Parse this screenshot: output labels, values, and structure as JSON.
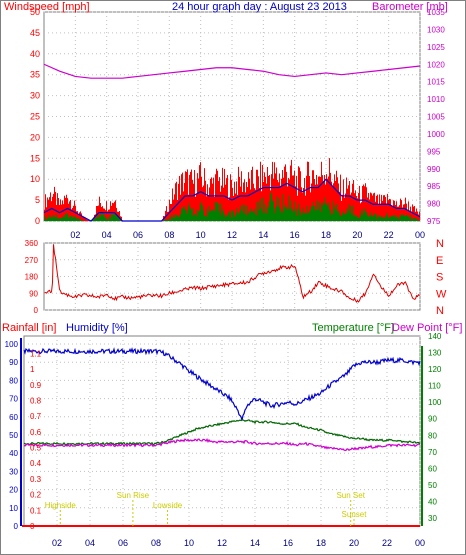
{
  "chart_data": [
    {
      "type": "line",
      "title": "24 hour graph day : August 23 2013",
      "xlabel": "",
      "ylabel": "Windspeed [mph]",
      "ylabel_right": "Barometer [mb]",
      "x_ticks": [
        "02",
        "04",
        "06",
        "08",
        "10",
        "12",
        "14",
        "16",
        "18",
        "20",
        "22",
        "00"
      ],
      "y_ticks": [
        0,
        5,
        10,
        15,
        20,
        25,
        30,
        35,
        40,
        45,
        50
      ],
      "y_ticks_right": [
        975,
        980,
        985,
        990,
        995,
        1000,
        1005,
        1010,
        1015,
        1020,
        1025,
        1030,
        1035
      ],
      "ylim": [
        0,
        50
      ],
      "ylim_right": [
        975,
        1035
      ],
      "grid": true,
      "colors": {
        "gust": "#ff0000",
        "wind": "#008000",
        "average": "#0000cc",
        "barometer": "#cc00cc"
      },
      "series": [
        {
          "name": "Windspeed",
          "x": [
            0,
            0.5,
            1,
            1.5,
            2,
            2.5,
            3,
            3.5,
            4,
            4.5,
            5,
            5.5,
            6,
            6.5,
            7,
            7.5,
            8,
            8.5,
            9,
            9.5,
            10,
            10.5,
            11,
            11.5,
            12,
            12.5,
            13,
            13.5,
            14,
            14.5,
            15,
            15.5,
            16,
            16.5,
            17,
            17.5,
            18,
            18.5,
            19,
            19.5,
            20,
            20.5,
            21,
            21.5,
            22,
            22.5,
            23,
            23.5,
            24
          ],
          "values": [
            1,
            2,
            1,
            2,
            1,
            0,
            0,
            2,
            1,
            2,
            0,
            0,
            0,
            0,
            0,
            0,
            1,
            2,
            4,
            3,
            4,
            3,
            4,
            3,
            2,
            4,
            3,
            4,
            5,
            6,
            5,
            6,
            4,
            3,
            5,
            4,
            6,
            4,
            2,
            4,
            2,
            3,
            2,
            1,
            2,
            1,
            2,
            1,
            0
          ]
        },
        {
          "name": "Gust",
          "x": [
            0,
            0.5,
            1,
            1.5,
            2,
            2.5,
            3,
            3.5,
            4,
            4.5,
            5,
            5.5,
            6,
            6.5,
            7,
            7.5,
            8,
            8.5,
            9,
            9.5,
            10,
            10.5,
            11,
            11.5,
            12,
            12.5,
            13,
            13.5,
            14,
            14.5,
            15,
            15.5,
            16,
            16.5,
            17,
            17.5,
            18,
            18.5,
            19,
            19.5,
            20,
            20.5,
            21,
            21.5,
            22,
            22.5,
            23,
            23.5,
            24
          ],
          "values": [
            6,
            9,
            5,
            8,
            4,
            1,
            0,
            6,
            5,
            7,
            0,
            0,
            0,
            0,
            0,
            0,
            6,
            11,
            13,
            12,
            14,
            11,
            13,
            12,
            11,
            13,
            12,
            13,
            14,
            15,
            14,
            16,
            13,
            12,
            15,
            14,
            17,
            13,
            10,
            11,
            8,
            9,
            7,
            6,
            7,
            5,
            6,
            4,
            2
          ]
        },
        {
          "name": "Average",
          "x": [
            0,
            0.5,
            1,
            1.5,
            2,
            2.5,
            3,
            3.5,
            4,
            4.5,
            5,
            5.5,
            6,
            6.5,
            7,
            7.5,
            8,
            8.5,
            9,
            9.5,
            10,
            10.5,
            11,
            11.5,
            12,
            12.5,
            13,
            13.5,
            14,
            14.5,
            15,
            15.5,
            16,
            16.5,
            17,
            17.5,
            18,
            18.5,
            19,
            19.5,
            20,
            20.5,
            21,
            21.5,
            22,
            22.5,
            23,
            23.5,
            24
          ],
          "values": [
            2,
            3,
            2,
            3,
            2,
            1,
            0,
            2,
            2,
            2,
            0,
            0,
            0,
            0,
            0,
            0,
            2,
            4,
            6,
            6,
            7,
            6,
            6,
            6,
            5,
            6,
            6,
            7,
            8,
            8,
            8,
            9,
            8,
            7,
            8,
            8,
            10,
            8,
            6,
            6,
            5,
            5,
            4,
            4,
            4,
            3,
            3,
            2,
            1
          ]
        },
        {
          "name": "Barometer",
          "x": [
            0,
            1,
            2,
            3,
            4,
            5,
            6,
            7,
            8,
            9,
            10,
            11,
            12,
            13,
            14,
            15,
            16,
            17,
            18,
            19,
            20,
            21,
            22,
            23,
            24
          ],
          "values": [
            1020,
            1018,
            1016.5,
            1016,
            1016,
            1016,
            1016.5,
            1017,
            1017.5,
            1018,
            1018.5,
            1019,
            1019,
            1018.5,
            1018,
            1017,
            1016.5,
            1017,
            1017.5,
            1017,
            1017.5,
            1018,
            1018.5,
            1019,
            1019.5
          ]
        }
      ]
    },
    {
      "type": "line",
      "title": "",
      "ylabel": "",
      "y_ticks": [
        0,
        90,
        180,
        270,
        360
      ],
      "y_ticks_right": [
        "N",
        "W",
        "S",
        "E",
        "N"
      ],
      "ylim": [
        0,
        360
      ],
      "grid": true,
      "colors": {
        "direction": "#dd0000"
      },
      "series": [
        {
          "name": "Wind Direction",
          "x": [
            0,
            0.5,
            0.55,
            1,
            1.5,
            2,
            2.5,
            3,
            3.5,
            4,
            4.5,
            5,
            5.5,
            6,
            6.5,
            7,
            7.5,
            8,
            8.5,
            9,
            9.5,
            10,
            10.5,
            11,
            11.5,
            12,
            12.5,
            13,
            13.5,
            14,
            14.5,
            15,
            15.5,
            16,
            16.5,
            17,
            17.5,
            18,
            18.5,
            19,
            19.5,
            20,
            20.5,
            21,
            21.5,
            22,
            22.5,
            23,
            23.5,
            24
          ],
          "values": [
            90,
            100,
            360,
            95,
            80,
            70,
            80,
            75,
            70,
            85,
            60,
            70,
            65,
            70,
            75,
            80,
            75,
            90,
            100,
            110,
            120,
            115,
            125,
            130,
            135,
            140,
            145,
            150,
            180,
            200,
            210,
            225,
            230,
            235,
            70,
            100,
            150,
            130,
            110,
            100,
            60,
            50,
            90,
            200,
            120,
            80,
            130,
            150,
            60,
            80
          ]
        }
      ]
    },
    {
      "type": "line",
      "title": "",
      "ylabel": "Rainfall [in]",
      "ylabel2": "Humidity [%]",
      "ylabel_right": "Temperature [°F]",
      "ylabel_right2": "Dew Point [°F]",
      "y_ticks_rain": [
        0,
        0.1,
        0.2,
        0.3,
        0.4,
        0.5,
        0.6,
        0.7,
        0.8,
        0.9,
        1,
        1.1
      ],
      "y_ticks_humidity": [
        0,
        10,
        20,
        30,
        40,
        50,
        60,
        70,
        80,
        90,
        100
      ],
      "y_ticks_temp": [
        30,
        40,
        50,
        60,
        70,
        80,
        90,
        100,
        110,
        120,
        130,
        140
      ],
      "ylim_humidity": [
        0,
        100
      ],
      "ylim_temp": [
        30,
        140
      ],
      "grid": true,
      "colors": {
        "rainfall": "#ff0000",
        "humidity": "#0000cc",
        "temperature": "#006600",
        "dewpoint": "#cc00cc",
        "astro": "#cccc00"
      },
      "annotations": [
        {
          "label": "Highside",
          "x": 2.2
        },
        {
          "label": "Sun Rise",
          "x": 6.6
        },
        {
          "label": "Lowside",
          "x": 8.7
        },
        {
          "label": "Sun Set",
          "x": 19.8
        },
        {
          "label": "Sunset",
          "x": 20.0
        }
      ],
      "series": [
        {
          "name": "Humidity",
          "x": [
            0,
            1,
            2,
            3,
            4,
            5,
            6,
            7,
            8,
            8.5,
            9,
            9.5,
            10,
            10.5,
            11,
            11.5,
            12,
            12.5,
            13,
            13.2,
            13.5,
            14,
            14.5,
            15,
            15.5,
            16,
            16.5,
            17,
            17.5,
            18,
            18.5,
            19,
            19.5,
            20,
            20.5,
            21,
            21.5,
            22,
            22.5,
            23,
            23.5,
            24
          ],
          "values": [
            96,
            96,
            96,
            96,
            96,
            96,
            96,
            96,
            96,
            95,
            92,
            89,
            85,
            82,
            79,
            76,
            73,
            70,
            63,
            58,
            66,
            70,
            68,
            66,
            67,
            68,
            67,
            69,
            71,
            73,
            77,
            80,
            83,
            88,
            90,
            90,
            90,
            91,
            91,
            91,
            90,
            90
          ]
        },
        {
          "name": "Temperature",
          "x": [
            0,
            1,
            2,
            3,
            4,
            5,
            6,
            7,
            8,
            8.5,
            9,
            9.5,
            10,
            10.5,
            11,
            11.5,
            12,
            12.5,
            13,
            13.5,
            14,
            14.5,
            15,
            15.5,
            16,
            16.5,
            17,
            17.5,
            18,
            18.5,
            19,
            19.5,
            20,
            20.5,
            21,
            21.5,
            22,
            22.5,
            23,
            23.5,
            24
          ],
          "values": [
            75,
            75,
            75,
            75,
            75,
            75,
            75,
            75,
            75,
            76,
            78,
            80,
            82,
            84,
            85,
            86,
            87,
            88,
            89,
            89,
            88,
            88,
            88,
            87,
            87,
            87,
            85,
            84,
            83,
            81,
            80,
            79,
            78,
            78,
            77,
            77,
            77,
            77,
            76,
            76,
            75
          ]
        },
        {
          "name": "Dew Point",
          "x": [
            0,
            1,
            2,
            3,
            4,
            5,
            6,
            7,
            8,
            8.5,
            9,
            9.5,
            10,
            10.5,
            11,
            11.5,
            12,
            12.5,
            13,
            13.5,
            14,
            14.5,
            15,
            15.5,
            16,
            16.5,
            17,
            17.5,
            18,
            18.5,
            19,
            19.5,
            20,
            20.5,
            21,
            21.5,
            22,
            22.5,
            23,
            23.5,
            24
          ],
          "values": [
            74,
            74,
            74,
            74,
            74,
            74,
            74,
            74,
            74,
            75,
            76,
            77,
            77,
            77,
            77,
            76,
            76,
            76,
            76,
            76,
            75,
            75,
            75,
            75,
            75,
            74,
            75,
            74,
            73,
            72,
            72,
            71,
            72,
            72,
            73,
            73,
            74,
            74,
            74,
            74,
            74
          ]
        },
        {
          "name": "Rainfall",
          "x": [
            0,
            24
          ],
          "values": [
            0,
            0
          ]
        }
      ]
    }
  ]
}
